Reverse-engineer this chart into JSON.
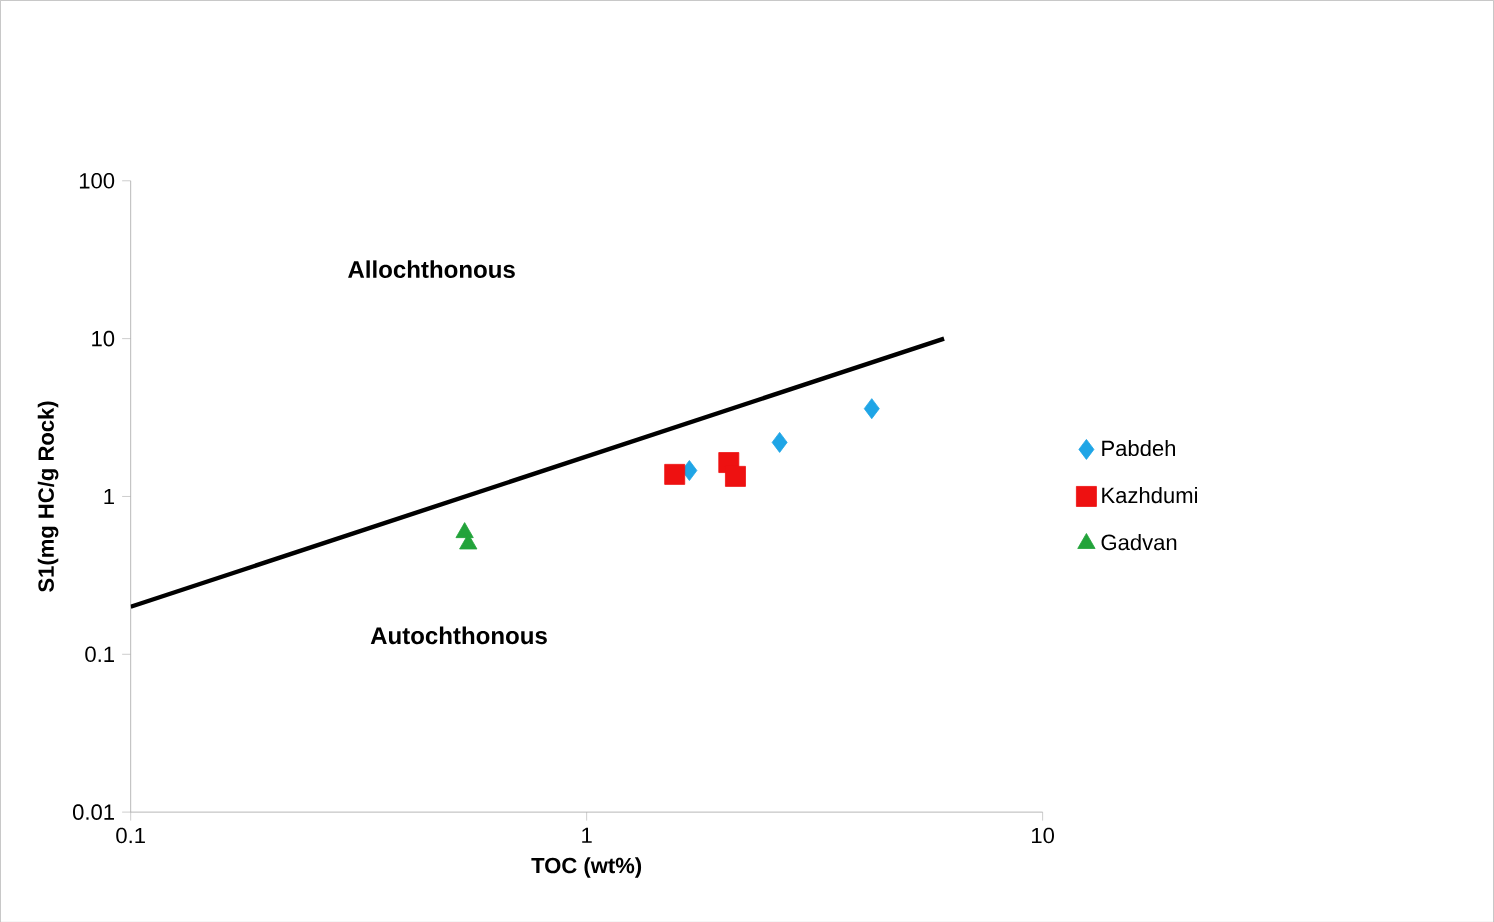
{
  "chart_data": {
    "type": "scatter",
    "xlabel": "TOC (wt%)",
    "ylabel": "S1(mg HC/g Rock)",
    "log": "xy",
    "xlim": [
      0.1,
      10
    ],
    "ylim": [
      0.01,
      100
    ],
    "xticks": [
      0.1,
      1,
      10
    ],
    "yticks": [
      0.01,
      0.1,
      1,
      10,
      100
    ],
    "grid": false,
    "legend": "right",
    "annotations": [
      "Allochthonous",
      "Autochthonous"
    ],
    "series": [
      {
        "name": "Pabdeh",
        "color": "#1fa5e6",
        "marker": "diamond",
        "x": [
          1.68,
          2.65,
          4.22
        ],
        "values": [
          1.46,
          2.2,
          3.6
        ]
      },
      {
        "name": "Kazhdumi",
        "color": "#ee1111",
        "marker": "square",
        "x": [
          1.56,
          2.05,
          2.12
        ],
        "values": [
          1.38,
          1.64,
          1.34
        ]
      },
      {
        "name": "Gadvan",
        "color": "#22a33a",
        "marker": "triangle",
        "x": [
          0.54,
          0.55
        ],
        "values": [
          0.59,
          0.5
        ]
      },
      {
        "type": "line",
        "color": "#000000",
        "marker": "none",
        "x": [
          0.1,
          6.08
        ],
        "values": [
          0.2,
          10
        ]
      }
    ]
  }
}
